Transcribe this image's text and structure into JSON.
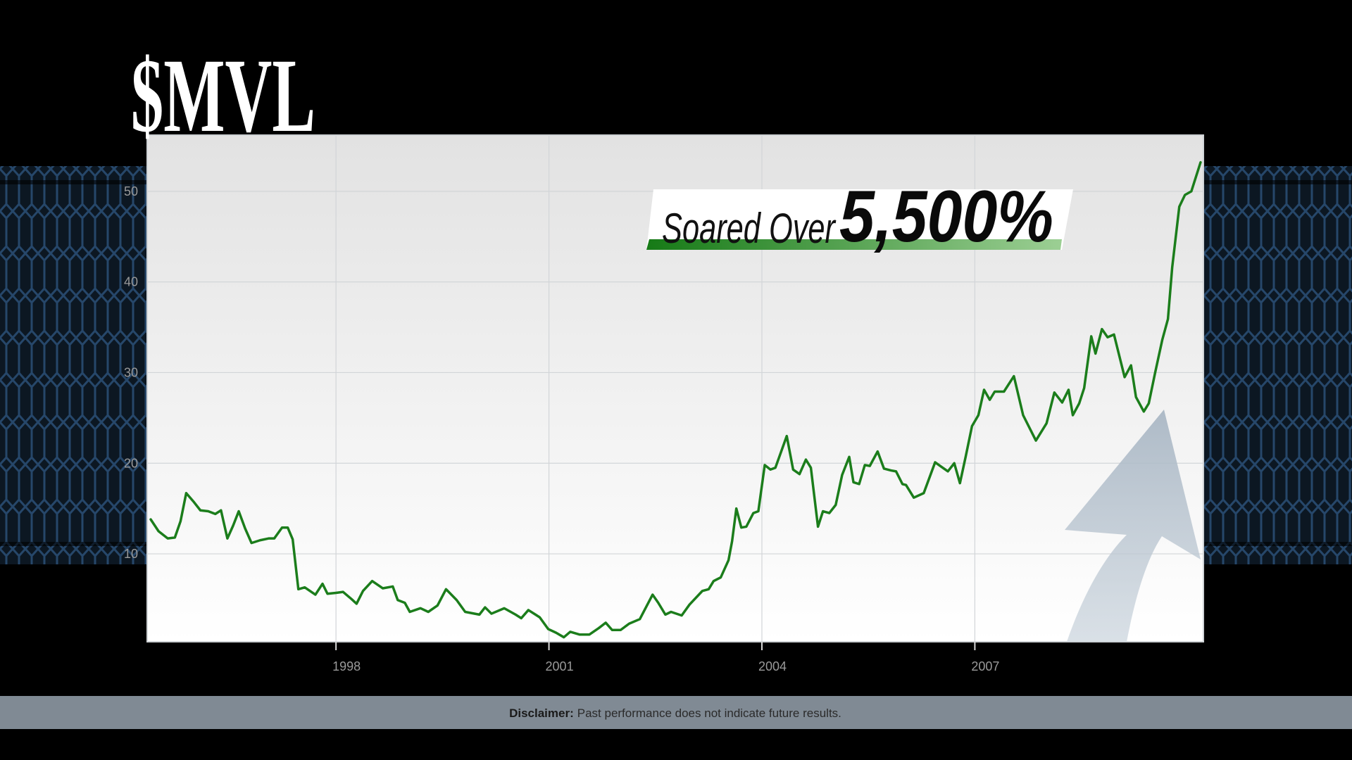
{
  "chart_data": {
    "type": "line",
    "title": "$MVL",
    "annotation": {
      "lead": "Soared Over",
      "highlight": "5,500%"
    },
    "x": [
      1995.39,
      1995.5,
      1995.63,
      1995.73,
      1995.81,
      1995.89,
      1996.0,
      1996.09,
      1996.2,
      1996.3,
      1996.38,
      1996.47,
      1996.55,
      1996.63,
      1996.72,
      1996.81,
      1996.93,
      1997.05,
      1997.13,
      1997.24,
      1997.32,
      1997.39,
      1997.47,
      1997.56,
      1997.71,
      1997.81,
      1997.88,
      1998.0,
      1998.1,
      1998.22,
      1998.29,
      1998.38,
      1998.51,
      1998.66,
      1998.8,
      1998.87,
      1998.97,
      1999.04,
      1999.19,
      1999.3,
      1999.43,
      1999.55,
      1999.7,
      1999.82,
      2000.02,
      2000.1,
      2000.19,
      2000.37,
      2000.53,
      2000.61,
      2000.71,
      2000.87,
      2000.99,
      2001.1,
      2001.21,
      2001.3,
      2001.43,
      2001.57,
      2001.7,
      2001.8,
      2001.89,
      2002.01,
      2002.13,
      2002.28,
      2002.46,
      2002.54,
      2002.64,
      2002.72,
      2002.87,
      2002.98,
      2003.16,
      2003.25,
      2003.32,
      2003.42,
      2003.53,
      2003.58,
      2003.64,
      2003.71,
      2003.78,
      2003.88,
      2003.95,
      2004.04,
      2004.12,
      2004.19,
      2004.35,
      2004.44,
      2004.53,
      2004.62,
      2004.69,
      2004.79,
      2004.86,
      2004.95,
      2005.04,
      2005.13,
      2005.23,
      2005.29,
      2005.37,
      2005.45,
      2005.52,
      2005.63,
      2005.72,
      2005.82,
      2005.89,
      2005.98,
      2006.03,
      2006.14,
      2006.28,
      2006.44,
      2006.53,
      2006.62,
      2006.71,
      2006.79,
      2006.87,
      2006.96,
      2007.05,
      2007.13,
      2007.21,
      2007.28,
      2007.41,
      2007.55,
      2007.68,
      2007.86,
      2008.01,
      2008.12,
      2008.23,
      2008.32,
      2008.38,
      2008.47,
      2008.54,
      2008.64,
      2008.7,
      2008.79,
      2008.87,
      2008.96,
      2009.11,
      2009.2,
      2009.27,
      2009.38,
      2009.45,
      2009.54,
      2009.64,
      2009.72,
      2009.78,
      2009.88,
      2009.96,
      2010.05,
      2010.18
    ],
    "values": [
      13.8,
      12.5,
      11.7,
      11.8,
      13.6,
      16.7,
      15.7,
      14.8,
      14.7,
      14.4,
      14.8,
      11.7,
      13.1,
      14.7,
      12.8,
      11.2,
      11.5,
      11.7,
      11.7,
      12.9,
      12.9,
      11.6,
      6.1,
      6.3,
      5.5,
      6.7,
      5.6,
      5.7,
      5.8,
      5.0,
      4.5,
      5.9,
      7.0,
      6.2,
      6.4,
      4.9,
      4.6,
      3.6,
      4.0,
      3.6,
      4.3,
      6.1,
      4.9,
      3.6,
      3.3,
      4.1,
      3.4,
      4.0,
      3.3,
      2.9,
      3.8,
      3.0,
      1.7,
      1.3,
      0.8,
      1.4,
      1.1,
      1.1,
      1.8,
      2.4,
      1.6,
      1.6,
      2.3,
      2.8,
      5.5,
      4.6,
      3.3,
      3.6,
      3.2,
      4.4,
      5.9,
      6.1,
      7.0,
      7.4,
      9.3,
      11.4,
      15.0,
      12.9,
      13.0,
      14.5,
      14.7,
      19.8,
      19.3,
      19.5,
      23.0,
      19.3,
      18.8,
      20.4,
      19.5,
      13.0,
      14.7,
      14.5,
      15.4,
      18.7,
      20.7,
      17.9,
      17.7,
      19.8,
      19.7,
      21.3,
      19.4,
      19.2,
      19.1,
      17.7,
      17.6,
      16.2,
      16.7,
      20.1,
      19.6,
      19.1,
      20.0,
      17.8,
      20.7,
      24.1,
      25.3,
      28.1,
      27.0,
      27.9,
      27.9,
      29.6,
      25.3,
      22.5,
      24.4,
      27.8,
      26.7,
      28.1,
      25.3,
      26.6,
      28.3,
      34.0,
      32.1,
      34.8,
      33.9,
      34.2,
      29.5,
      30.8,
      27.3,
      25.7,
      26.6,
      30.0,
      33.6,
      35.9,
      41.6,
      48.3,
      49.6,
      50.0,
      53.2
    ],
    "color": "#1b7d1b",
    "xlim": [
      1995.34,
      2010.22
    ],
    "xticks": [
      1998,
      2001,
      2004,
      2007
    ],
    "ylim": [
      0.3,
      56.2
    ],
    "yticks": [
      10,
      20,
      30,
      40,
      50
    ],
    "grid": true,
    "disclaimer": {
      "label": "Disclaimer:",
      "text": "Past performance does not indicate future results."
    }
  }
}
